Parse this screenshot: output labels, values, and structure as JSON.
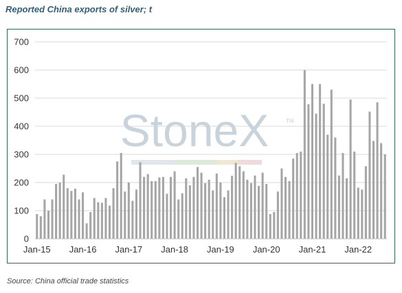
{
  "title": "Reported China exports of silver; t",
  "source": "Source: China official trade statistics",
  "watermark": {
    "text": "StoneX",
    "mark": "TM"
  },
  "chart_data": {
    "type": "bar",
    "title": "Reported China exports of silver; t",
    "xlabel": "",
    "ylabel": "",
    "ylim": [
      0,
      700
    ],
    "yticks": [
      0,
      100,
      200,
      300,
      400,
      500,
      600,
      700
    ],
    "grid": true,
    "bar_color": "#a6a6a6",
    "x_tick_labels": [
      "Jan-15",
      "Jan-16",
      "Jan-17",
      "Jan-18",
      "Jan-19",
      "Jan-20",
      "Jan-21",
      "Jan-22"
    ],
    "x_tick_positions": [
      0,
      12,
      24,
      36,
      48,
      60,
      72,
      84
    ],
    "values": [
      88,
      80,
      140,
      100,
      140,
      195,
      200,
      228,
      180,
      170,
      178,
      140,
      165,
      55,
      95,
      145,
      130,
      128,
      145,
      118,
      180,
      275,
      305,
      168,
      200,
      135,
      175,
      272,
      220,
      230,
      205,
      205,
      218,
      220,
      160,
      220,
      240,
      140,
      162,
      215,
      190,
      220,
      255,
      235,
      198,
      210,
      172,
      232,
      200,
      148,
      172,
      224,
      270,
      258,
      240,
      210,
      198,
      225,
      188,
      235,
      195,
      88,
      95,
      168,
      250,
      220,
      205,
      285,
      305,
      310,
      600,
      478,
      550,
      445,
      550,
      480,
      370,
      530,
      360,
      225,
      305,
      215,
      495,
      310,
      182,
      175,
      258,
      452,
      348,
      485,
      340,
      300
    ]
  }
}
